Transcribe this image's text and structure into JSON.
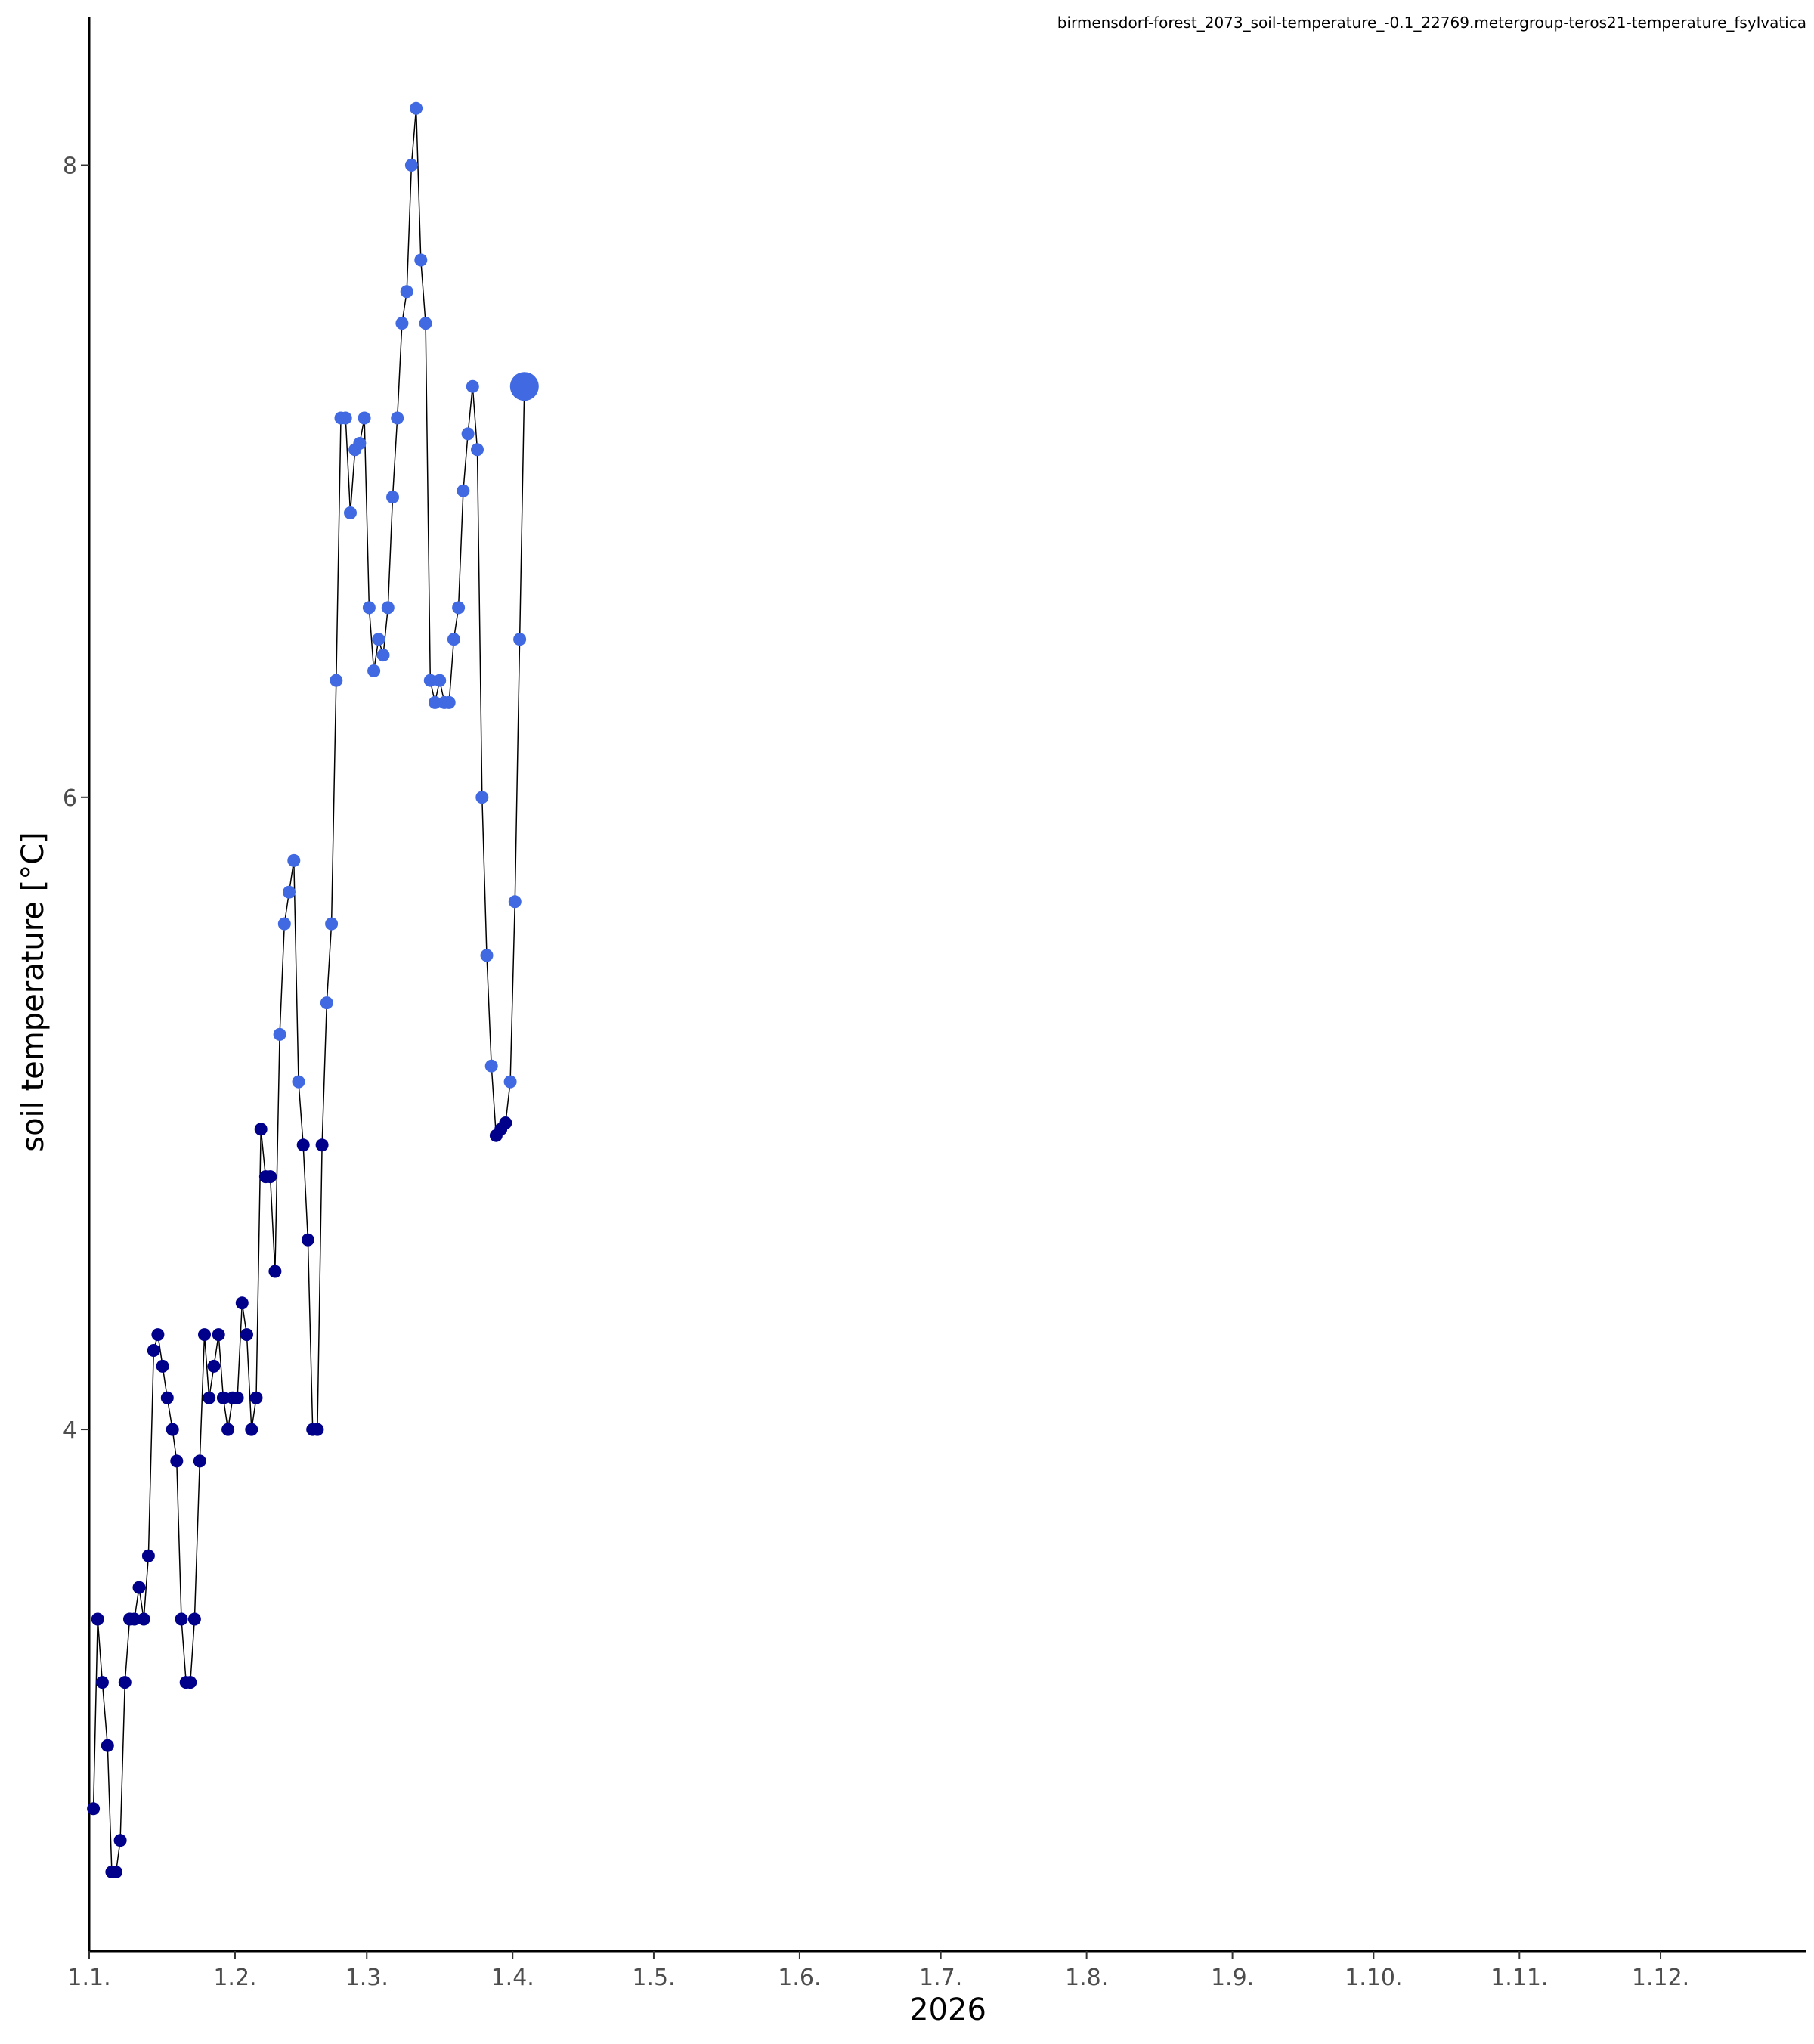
{
  "caption": "birmensdorf-forest_2073_soil-temperature_-0.1_22769.metergroup-teros21-temperature_fsylvatica",
  "colors": {
    "cold": "#00008B",
    "warm": "#4169E1",
    "line": "#000000",
    "axis": "#000000"
  },
  "chart_data": {
    "type": "line",
    "title": "",
    "xlabel": "2026",
    "ylabel": "soil temperature [°C]",
    "x_ticks": [
      "1.1.",
      "1.2.",
      "1.3.",
      "1.4.",
      "1.5.",
      "1.6.",
      "1.7.",
      "1.8.",
      "1.9.",
      "1.10.",
      "1.11.",
      "1.12."
    ],
    "yticks": [
      4,
      6,
      8
    ],
    "xlim": [
      0,
      365
    ],
    "ylim": [
      2.35,
      8.47
    ],
    "grid": false,
    "series": [
      {
        "x_unit": "days since 1 Jan 2026",
        "x": [
          0.9,
          1.8,
          2.8,
          3.9,
          4.8,
          5.7,
          6.6,
          7.6,
          8.6,
          9.6,
          10.6,
          11.6,
          12.6,
          13.7,
          14.6,
          15.6,
          16.6,
          17.7,
          18.6,
          19.6,
          20.6,
          21.5,
          22.4,
          23.5,
          24.5,
          25.5,
          26.5,
          27.5,
          28.5,
          29.5,
          30.5,
          31.5,
          32.5,
          33.5,
          34.5,
          35.5,
          36.5,
          37.5,
          38.5,
          39.5,
          40.5,
          41.5,
          42.5,
          43.5,
          44.5,
          45.5,
          46.5,
          47.5,
          48.5,
          49.5,
          50.5,
          51.5,
          52.5,
          53.5,
          54.5,
          55.5,
          56.5,
          57.5,
          58.5,
          59.5,
          60.5,
          61.5,
          62.5,
          63.5,
          64.5,
          65.5,
          66.5,
          67.5,
          68.5,
          69.5,
          70.5,
          71.5,
          72.5,
          73.5,
          74.5,
          75.5,
          76.5,
          77.5,
          78.5,
          79.5,
          80.5,
          81.5,
          82.5,
          83.5,
          84.5,
          85.5,
          86.5,
          87.5,
          88.5,
          89.5,
          90.5,
          91.5,
          92.5
        ],
        "y": [
          2.8,
          3.4,
          3.2,
          3.0,
          2.6,
          2.6,
          2.7,
          3.2,
          3.4,
          3.4,
          3.5,
          3.4,
          3.6,
          4.25,
          4.3,
          4.2,
          4.1,
          4.0,
          3.9,
          3.4,
          3.2,
          3.2,
          3.4,
          3.9,
          4.3,
          4.1,
          4.2,
          4.3,
          4.1,
          4.0,
          4.1,
          4.1,
          4.4,
          4.3,
          4.0,
          4.1,
          4.95,
          4.8,
          4.8,
          4.5,
          5.25,
          5.6,
          5.7,
          5.8,
          5.1,
          4.9,
          4.6,
          4.0,
          4.0,
          4.9,
          5.35,
          5.6,
          6.37,
          7.2,
          7.2,
          6.9,
          7.1,
          7.12,
          7.2,
          6.6,
          6.4,
          6.5,
          6.45,
          6.6,
          6.95,
          7.2,
          7.5,
          7.6,
          8.0,
          8.18,
          7.7,
          7.5,
          6.37,
          6.3,
          6.37,
          6.3,
          6.3,
          6.5,
          6.6,
          6.97,
          7.15,
          7.3,
          7.1,
          6.0,
          5.5,
          5.15,
          4.93,
          4.95,
          4.97,
          5.1,
          5.67,
          6.5,
          7.3
        ],
        "last_point_highlight": true
      }
    ]
  }
}
